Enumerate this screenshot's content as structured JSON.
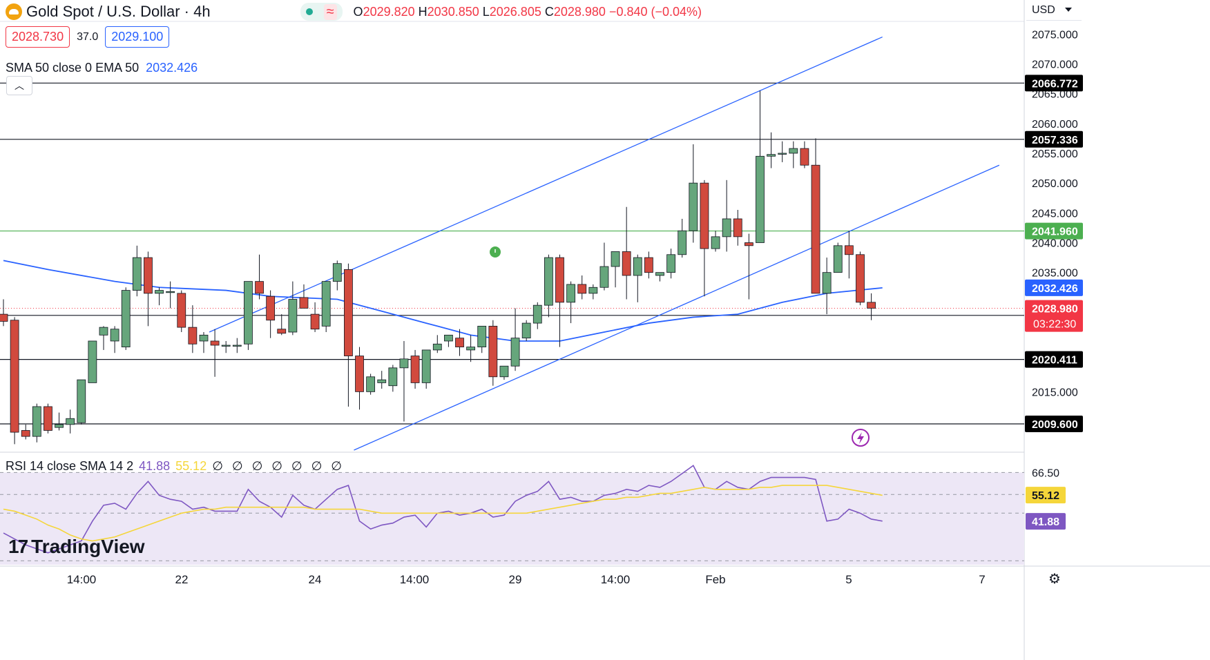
{
  "header": {
    "symbol_title": "Gold Spot / U.S. Dollar · 4h",
    "ohlc": {
      "o_label": "O",
      "o": "2029.820",
      "h_label": "H",
      "h": "2030.850",
      "l_label": "L",
      "l": "2026.805",
      "c_label": "C",
      "c": "2028.980",
      "change": "−0.840 (−0.04%)"
    }
  },
  "quote": {
    "bid": "2028.730",
    "spread": "37.0",
    "ask": "2029.100"
  },
  "indicator_legend": {
    "label": "SMA 50 close 0 EMA 50",
    "value": "2032.426"
  },
  "rsi_legend": {
    "label": "RSI 14 close SMA 14 2",
    "rsi_value": "41.88",
    "sma_value": "55.12",
    "extras": "∅ ∅ ∅ ∅ ∅ ∅ ∅"
  },
  "currency": "USD",
  "branding": "TradingView",
  "colors": {
    "up": "#66a67c",
    "down": "#d14a3e",
    "ema": "#2962ff",
    "channel": "#2962ff",
    "support_resistance": "#131722",
    "green_level": "#4caf50",
    "rsi": "#7e57c2",
    "rsi_sma": "#f5d63a",
    "rsi_band": "#ede7f6"
  },
  "chart_data": {
    "type": "candlestick",
    "title": "Gold Spot / U.S. Dollar · 4h",
    "ylim": [
      2005.2,
      2077.0
    ],
    "y_ticks": [
      2015,
      2035,
      2040,
      2045,
      2050,
      2055,
      2060,
      2065,
      2070,
      2075
    ],
    "x_ticks": [
      "14:00",
      "22",
      "24",
      "14:00",
      "29",
      "14:00",
      "Feb",
      "5",
      "7"
    ],
    "candles": [
      {
        "o": 2028.0,
        "h": 2030.5,
        "l": 2026.0,
        "c": 2026.8
      },
      {
        "o": 2027.0,
        "h": 2027.5,
        "l": 2006.2,
        "c": 2008.2
      },
      {
        "o": 2008.5,
        "h": 2009.5,
        "l": 2007.0,
        "c": 2007.5
      },
      {
        "o": 2007.5,
        "h": 2013.0,
        "l": 2006.5,
        "c": 2012.5
      },
      {
        "o": 2012.5,
        "h": 2013.0,
        "l": 2008.0,
        "c": 2008.5
      },
      {
        "o": 2009.0,
        "h": 2011.5,
        "l": 2008.5,
        "c": 2009.5
      },
      {
        "o": 2009.5,
        "h": 2012.0,
        "l": 2008.0,
        "c": 2010.5
      },
      {
        "o": 2009.8,
        "h": 2017.0,
        "l": 2009.5,
        "c": 2017.0
      },
      {
        "o": 2016.5,
        "h": 2023.5,
        "l": 2016.5,
        "c": 2023.5
      },
      {
        "o": 2024.5,
        "h": 2026.0,
        "l": 2022.0,
        "c": 2025.8
      },
      {
        "o": 2023.5,
        "h": 2026.0,
        "l": 2021.5,
        "c": 2025.5
      },
      {
        "o": 2022.5,
        "h": 2032.5,
        "l": 2022.0,
        "c": 2032.0
      },
      {
        "o": 2032.0,
        "h": 2039.5,
        "l": 2031.0,
        "c": 2037.5
      },
      {
        "o": 2037.5,
        "h": 2038.5,
        "l": 2026.0,
        "c": 2031.5
      },
      {
        "o": 2031.5,
        "h": 2032.5,
        "l": 2029.5,
        "c": 2032.0
      },
      {
        "o": 2031.8,
        "h": 2033.5,
        "l": 2029.0,
        "c": 2031.8
      },
      {
        "o": 2031.5,
        "h": 2032.0,
        "l": 2025.0,
        "c": 2025.8
      },
      {
        "o": 2025.8,
        "h": 2029.5,
        "l": 2021.5,
        "c": 2023.0
      },
      {
        "o": 2023.5,
        "h": 2025.0,
        "l": 2021.5,
        "c": 2024.5
      },
      {
        "o": 2023.5,
        "h": 2025.5,
        "l": 2017.5,
        "c": 2022.8
      },
      {
        "o": 2022.8,
        "h": 2023.5,
        "l": 2021.5,
        "c": 2022.8
      },
      {
        "o": 2022.8,
        "h": 2024.0,
        "l": 2021.5,
        "c": 2022.8
      },
      {
        "o": 2023.0,
        "h": 2033.5,
        "l": 2022.0,
        "c": 2033.5
      },
      {
        "o": 2033.5,
        "h": 2038.0,
        "l": 2030.5,
        "c": 2031.5
      },
      {
        "o": 2031.0,
        "h": 2032.0,
        "l": 2024.0,
        "c": 2027.0
      },
      {
        "o": 2025.5,
        "h": 2028.0,
        "l": 2024.5,
        "c": 2024.8
      },
      {
        "o": 2025.0,
        "h": 2033.5,
        "l": 2024.5,
        "c": 2030.5
      },
      {
        "o": 2030.8,
        "h": 2033.0,
        "l": 2029.5,
        "c": 2029.0
      },
      {
        "o": 2028.0,
        "h": 2030.0,
        "l": 2025.0,
        "c": 2025.5
      },
      {
        "o": 2026.0,
        "h": 2033.5,
        "l": 2025.0,
        "c": 2033.5
      },
      {
        "o": 2033.5,
        "h": 2037.0,
        "l": 2032.0,
        "c": 2036.5
      },
      {
        "o": 2035.5,
        "h": 2036.5,
        "l": 2012.5,
        "c": 2021.0
      },
      {
        "o": 2021.0,
        "h": 2022.5,
        "l": 2012.0,
        "c": 2015.0
      },
      {
        "o": 2015.0,
        "h": 2018.0,
        "l": 2014.5,
        "c": 2017.5
      },
      {
        "o": 2016.5,
        "h": 2018.5,
        "l": 2015.5,
        "c": 2017.0
      },
      {
        "o": 2016.0,
        "h": 2019.5,
        "l": 2015.0,
        "c": 2019.0
      },
      {
        "o": 2019.0,
        "h": 2023.5,
        "l": 2010.0,
        "c": 2020.5
      },
      {
        "o": 2021.0,
        "h": 2022.0,
        "l": 2015.5,
        "c": 2016.5
      },
      {
        "o": 2016.5,
        "h": 2022.0,
        "l": 2015.5,
        "c": 2022.0
      },
      {
        "o": 2022.0,
        "h": 2024.5,
        "l": 2021.5,
        "c": 2023.0
      },
      {
        "o": 2023.5,
        "h": 2024.0,
        "l": 2022.5,
        "c": 2024.5
      },
      {
        "o": 2024.0,
        "h": 2025.5,
        "l": 2021.0,
        "c": 2022.5
      },
      {
        "o": 2022.0,
        "h": 2024.5,
        "l": 2020.0,
        "c": 2022.5
      },
      {
        "o": 2022.5,
        "h": 2026.0,
        "l": 2021.5,
        "c": 2026.0
      },
      {
        "o": 2026.0,
        "h": 2027.0,
        "l": 2016.0,
        "c": 2017.5
      },
      {
        "o": 2017.5,
        "h": 2019.0,
        "l": 2017.0,
        "c": 2019.3
      },
      {
        "o": 2019.3,
        "h": 2029.0,
        "l": 2018.5,
        "c": 2024.0
      },
      {
        "o": 2024.0,
        "h": 2027.0,
        "l": 2023.5,
        "c": 2026.5
      },
      {
        "o": 2026.5,
        "h": 2030.0,
        "l": 2025.5,
        "c": 2029.5
      },
      {
        "o": 2029.5,
        "h": 2038.0,
        "l": 2027.5,
        "c": 2037.5
      },
      {
        "o": 2037.5,
        "h": 2038.0,
        "l": 2022.5,
        "c": 2030.0
      },
      {
        "o": 2030.0,
        "h": 2033.5,
        "l": 2026.5,
        "c": 2033.0
      },
      {
        "o": 2033.0,
        "h": 2034.5,
        "l": 2030.5,
        "c": 2031.5
      },
      {
        "o": 2031.5,
        "h": 2033.0,
        "l": 2030.5,
        "c": 2032.5
      },
      {
        "o": 2032.5,
        "h": 2040.0,
        "l": 2032.0,
        "c": 2036.0
      },
      {
        "o": 2036.0,
        "h": 2038.5,
        "l": 2032.5,
        "c": 2038.5
      },
      {
        "o": 2038.5,
        "h": 2046.0,
        "l": 2030.5,
        "c": 2034.5
      },
      {
        "o": 2034.5,
        "h": 2038.0,
        "l": 2030.0,
        "c": 2037.5
      },
      {
        "o": 2037.5,
        "h": 2038.5,
        "l": 2034.0,
        "c": 2035.0
      },
      {
        "o": 2034.5,
        "h": 2035.0,
        "l": 2033.5,
        "c": 2035.0
      },
      {
        "o": 2035.0,
        "h": 2039.0,
        "l": 2034.0,
        "c": 2038.0
      },
      {
        "o": 2038.0,
        "h": 2044.0,
        "l": 2037.5,
        "c": 2042.0
      },
      {
        "o": 2042.0,
        "h": 2056.5,
        "l": 2040.0,
        "c": 2050.0
      },
      {
        "o": 2050.0,
        "h": 2050.5,
        "l": 2031.0,
        "c": 2039.0
      },
      {
        "o": 2039.0,
        "h": 2042.0,
        "l": 2038.5,
        "c": 2041.0
      },
      {
        "o": 2041.0,
        "h": 2050.5,
        "l": 2038.5,
        "c": 2044.0
      },
      {
        "o": 2044.0,
        "h": 2045.5,
        "l": 2039.5,
        "c": 2041.0
      },
      {
        "o": 2040.0,
        "h": 2041.5,
        "l": 2030.5,
        "c": 2039.5
      },
      {
        "o": 2040.0,
        "h": 2065.5,
        "l": 2040.0,
        "c": 2054.5
      },
      {
        "o": 2054.5,
        "h": 2058.5,
        "l": 2052.5,
        "c": 2054.8
      },
      {
        "o": 2055.0,
        "h": 2057.0,
        "l": 2053.5,
        "c": 2055.0
      },
      {
        "o": 2055.0,
        "h": 2057.0,
        "l": 2052.5,
        "c": 2055.8
      },
      {
        "o": 2055.8,
        "h": 2057.0,
        "l": 2052.5,
        "c": 2053.0
      },
      {
        "o": 2053.0,
        "h": 2057.5,
        "l": 2031.5,
        "c": 2031.5
      },
      {
        "o": 2031.5,
        "h": 2037.5,
        "l": 2028.0,
        "c": 2035.0
      },
      {
        "o": 2035.0,
        "h": 2040.0,
        "l": 2035.0,
        "c": 2039.5
      },
      {
        "o": 2039.5,
        "h": 2042.0,
        "l": 2034.0,
        "c": 2038.0
      },
      {
        "o": 2038.0,
        "h": 2038.5,
        "l": 2029.5,
        "c": 2030.0
      },
      {
        "o": 2030.0,
        "h": 2031.5,
        "l": 2027.0,
        "c": 2029.0
      }
    ],
    "ema": [
      {
        "i": 0,
        "v": 2037.0
      },
      {
        "i": 4,
        "v": 2035.5
      },
      {
        "i": 10,
        "v": 2033.5
      },
      {
        "i": 14,
        "v": 2032.5
      },
      {
        "i": 20,
        "v": 2032.0
      },
      {
        "i": 24,
        "v": 2031.0
      },
      {
        "i": 30,
        "v": 2030.5
      },
      {
        "i": 34,
        "v": 2028.5
      },
      {
        "i": 38,
        "v": 2026.5
      },
      {
        "i": 42,
        "v": 2024.5
      },
      {
        "i": 46,
        "v": 2023.5
      },
      {
        "i": 50,
        "v": 2023.5
      },
      {
        "i": 54,
        "v": 2025.0
      },
      {
        "i": 58,
        "v": 2026.5
      },
      {
        "i": 62,
        "v": 2027.5
      },
      {
        "i": 66,
        "v": 2028.0
      },
      {
        "i": 70,
        "v": 2030.0
      },
      {
        "i": 74,
        "v": 2031.5
      },
      {
        "i": 79,
        "v": 2032.426
      }
    ],
    "horizontal_levels": [
      {
        "value": 2066.772,
        "label": "2066.772",
        "color": "#131722"
      },
      {
        "value": 2057.336,
        "label": "2057.336",
        "color": "#131722"
      },
      {
        "value": 2041.96,
        "label": "2041.960",
        "color": "#4caf50"
      },
      {
        "value": 2027.806,
        "label": "2027.806",
        "color": "#131722"
      },
      {
        "value": 2020.411,
        "label": "2020.411",
        "color": "#131722"
      },
      {
        "value": 2009.6,
        "label": "2009.600",
        "color": "#131722"
      }
    ],
    "price_badges": [
      {
        "value": 2032.426,
        "label": "2032.426",
        "color": "#2962ff"
      },
      {
        "value": 2028.98,
        "label": "2028.980",
        "sub": "03:22:30",
        "color": "#f23645"
      }
    ],
    "channel_lines": [
      [
        {
          "i": 18.5,
          "v": 2025.0
        },
        {
          "i": 79.0,
          "v": 2074.5
        }
      ],
      [
        {
          "i": 31.5,
          "v": 2005.2
        },
        {
          "i": 89.5,
          "v": 2053.0
        }
      ]
    ],
    "rsi": {
      "ylim": [
        20,
        75
      ],
      "ticks": [
        66.5,
        55.44
      ],
      "rsi_values": [
        36,
        33,
        30,
        28,
        26,
        28,
        30,
        32,
        42,
        50,
        51,
        48,
        56,
        62,
        55,
        53,
        52,
        48,
        49,
        47,
        47,
        47,
        58,
        52,
        49,
        44,
        55,
        50,
        48,
        53,
        58,
        60,
        42,
        38,
        40,
        41,
        44,
        45,
        39,
        46,
        47,
        45,
        46,
        48,
        44,
        45,
        52,
        55,
        57,
        62,
        53,
        54,
        52,
        52,
        55,
        56,
        58,
        57,
        60,
        59,
        62,
        66,
        70,
        59,
        58,
        62,
        59,
        58,
        62,
        64,
        64,
        64,
        64,
        63,
        42,
        43,
        48,
        46,
        43,
        42
      ],
      "sma_values": [
        48,
        47,
        45,
        43,
        40,
        38,
        35,
        33,
        32,
        33,
        34,
        36,
        38,
        40,
        42,
        44,
        46,
        47,
        48,
        48,
        49,
        49,
        49,
        49,
        49,
        49,
        49,
        49,
        48,
        48,
        48,
        48,
        48,
        47,
        46,
        46,
        46,
        46,
        46,
        46,
        46,
        46,
        46,
        46,
        46,
        46,
        46,
        46,
        47,
        48,
        49,
        50,
        51,
        52,
        53,
        53,
        54,
        54,
        55,
        56,
        56,
        57,
        58,
        59,
        58,
        58,
        58,
        58,
        59,
        59,
        60,
        60,
        60,
        60,
        60,
        59,
        58,
        57,
        56,
        55
      ]
    }
  }
}
